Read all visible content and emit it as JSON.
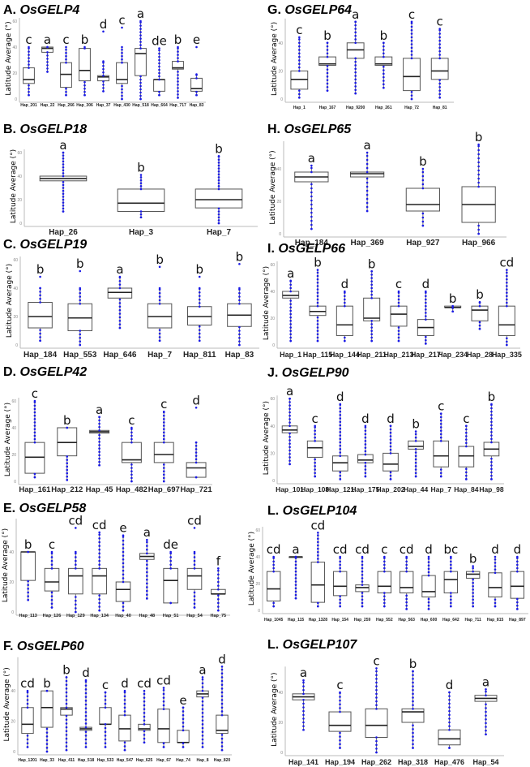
{
  "ylabel": "Latitude Average (°)",
  "colors": {
    "box": "#555555",
    "point": "#1a1ae6",
    "letter": "#111111",
    "letter_top": "#ee1c1c",
    "axis": "#bbbbbb"
  },
  "chart_data": [
    {
      "type": "box",
      "panel": "A.",
      "gene": "OsGELP4",
      "ylabel": "Latitude Average (°)",
      "yticks": [
        0,
        20,
        40,
        60
      ],
      "ylim": [
        0,
        60
      ],
      "categories": [
        "Hap_201",
        "Hap_22",
        "Hap_266",
        "Hap_306",
        "Hap_37",
        "Hap_430",
        "Hap_518",
        "Hap_664",
        "Hap_717",
        "Hap_83"
      ],
      "boxes": [
        [
          3,
          12,
          15,
          24,
          40
        ],
        [
          21,
          36,
          39,
          40,
          40
        ],
        [
          3,
          9,
          19,
          28,
          40
        ],
        [
          3,
          14,
          22,
          39,
          40
        ],
        [
          6,
          14,
          17,
          18,
          29
        ],
        [
          0,
          12,
          15,
          28,
          40
        ],
        [
          0,
          18,
          35,
          39,
          60
        ],
        [
          3,
          6,
          15,
          15,
          39
        ],
        [
          1,
          23,
          24,
          29,
          40
        ],
        [
          3,
          6,
          8,
          16,
          19
        ]
      ],
      "outliers": [
        [],
        [],
        [],
        [],
        [
          52
        ],
        [
          55
        ],
        [],
        [],
        [],
        [
          40
        ]
      ],
      "letters": [
        "c",
        "a",
        "c",
        "b",
        "d",
        "c",
        "a",
        "de",
        "b",
        "e"
      ]
    },
    {
      "type": "box",
      "panel": "B.",
      "gene": "OsGELP18",
      "ylabel": "Latitude Average (°)",
      "yticks": [
        0,
        20,
        40,
        60
      ],
      "ylim": [
        0,
        60
      ],
      "categories": [
        "Hap_26",
        "Hap_3",
        "Hap_7"
      ],
      "boxes": [
        [
          10,
          36,
          38,
          40,
          60
        ],
        [
          5,
          10,
          17,
          29,
          41
        ],
        [
          0,
          13,
          20,
          29,
          57
        ]
      ],
      "outliers": [
        [],
        [],
        []
      ],
      "letters": [
        "a",
        "b",
        "b"
      ]
    },
    {
      "type": "box",
      "panel": "C.",
      "gene": "OsGELP19",
      "ylabel": "Latitude Average (°)",
      "yticks": [
        0,
        20,
        40,
        60
      ],
      "ylim": [
        0,
        60
      ],
      "categories": [
        "Hap_184",
        "Hap_553",
        "Hap_646",
        "Hap_7",
        "Hap_811",
        "Hap_83"
      ],
      "boxes": [
        [
          3,
          12,
          20,
          30,
          40
        ],
        [
          0,
          10,
          19,
          29,
          40
        ],
        [
          12,
          33,
          37,
          40,
          48
        ],
        [
          3,
          12,
          20,
          29,
          40
        ],
        [
          3,
          14,
          20,
          27,
          40
        ],
        [
          0,
          13,
          21,
          29,
          40
        ]
      ],
      "outliers": [
        [
          48
        ],
        [
          52
        ],
        [],
        [
          55
        ],
        [
          48
        ],
        [
          57
        ]
      ],
      "letters": [
        "b",
        "b",
        "a",
        "b",
        "b",
        "b"
      ]
    },
    {
      "type": "box",
      "panel": "D.",
      "gene": "OsGELP42",
      "ylabel": "Latitude Average (°)",
      "yticks": [
        0,
        20,
        40,
        60
      ],
      "ylim": [
        0,
        60
      ],
      "categories": [
        "Hap_161",
        "Hap_212",
        "Hap_45",
        "Hap_482",
        "Hap_697",
        "Hap_721"
      ],
      "boxes": [
        [
          3,
          6,
          18,
          29,
          60
        ],
        [
          1,
          19,
          29,
          40,
          40
        ],
        [
          12,
          36,
          37,
          38,
          48
        ],
        [
          0,
          14,
          16,
          29,
          40
        ],
        [
          0,
          14,
          20,
          29,
          52
        ],
        [
          3,
          3,
          10,
          14,
          29
        ]
      ],
      "outliers": [
        [],
        [],
        [],
        [],
        [],
        [
          55
        ]
      ],
      "letters": [
        "c",
        "b",
        "a",
        "c",
        "c",
        "d"
      ]
    },
    {
      "type": "box",
      "panel": "E.",
      "gene": "OsGELP58",
      "ylabel": "Latitude Average (°)",
      "yticks": [
        0,
        20,
        40
      ],
      "ylim": [
        0,
        60
      ],
      "categories": [
        "Hap_113",
        "Hap_126",
        "Hap_129",
        "Hap_134",
        "Hap_40",
        "Hap_48",
        "Hap_51",
        "Hap_54",
        "Hap_75"
      ],
      "boxes": [
        [
          8,
          21,
          40,
          40,
          40
        ],
        [
          3,
          14,
          20,
          29,
          40
        ],
        [
          0,
          12,
          24,
          29,
          40
        ],
        [
          1,
          12,
          24,
          29,
          53
        ],
        [
          1,
          7,
          15,
          20,
          51
        ],
        [
          9,
          35,
          37,
          39,
          48
        ],
        [
          6,
          6,
          21,
          29,
          40
        ],
        [
          3,
          15,
          24,
          29,
          40
        ],
        [
          1,
          12,
          12,
          15,
          29
        ]
      ],
      "outliers": [
        [],
        [],
        [
          56
        ],
        [],
        [],
        [],
        [],
        [
          56
        ],
        []
      ],
      "letters": [
        "b",
        "c",
        "cd",
        "cd",
        "e",
        "a",
        "de",
        "cd",
        "f"
      ]
    },
    {
      "type": "box",
      "panel": "F.",
      "gene": "OsGELP60",
      "ylabel": "Latitude Average (°)",
      "yticks": [
        0,
        20,
        40
      ],
      "ylim": [
        0,
        60
      ],
      "categories": [
        "Hap_1201",
        "Hap_33",
        "Hap_411",
        "Hap_518",
        "Hap_533",
        "Hap_547",
        "Hap_625",
        "Hap_67",
        "Hap_74",
        "Hap_8",
        "Hap_820"
      ],
      "boxes": [
        [
          3,
          12,
          18,
          29,
          40
        ],
        [
          0,
          16,
          29,
          40,
          40
        ],
        [
          1,
          24,
          28,
          29,
          49
        ],
        [
          3,
          14,
          15,
          16,
          47
        ],
        [
          3,
          18,
          18,
          29,
          39
        ],
        [
          1,
          7,
          15,
          24,
          40
        ],
        [
          6,
          14,
          15,
          18,
          40
        ],
        [
          3,
          6,
          15,
          28,
          42
        ],
        [
          3,
          6,
          6,
          14,
          29
        ],
        [
          3,
          36,
          38,
          40,
          49
        ],
        [
          1,
          12,
          14,
          24,
          56
        ]
      ],
      "outliers": [
        [],
        [],
        [],
        [],
        [],
        [],
        [],
        [],
        [],
        [],
        []
      ],
      "letters": [
        "cd",
        "b",
        "b",
        "d",
        "c",
        "d",
        "cd",
        "cd",
        "e",
        "a",
        "d"
      ]
    },
    {
      "type": "box",
      "panel": "G.",
      "gene": "OsGELP64",
      "ylabel": "Latitude Average (°)",
      "yticks": [
        0,
        20,
        40
      ],
      "ylim": [
        0,
        55
      ],
      "categories": [
        "Hap_1",
        "Hap_167",
        "Hap_9200",
        "Hap_261",
        "Hap_72",
        "Hap_81"
      ],
      "boxes": [
        [
          1,
          7,
          14,
          20,
          44
        ],
        [
          6,
          24,
          25,
          30,
          40
        ],
        [
          4,
          29,
          35,
          40,
          55
        ],
        [
          8,
          24,
          25,
          30,
          40
        ],
        [
          0,
          6,
          16,
          29,
          55
        ],
        [
          1,
          14,
          20,
          29,
          50
        ]
      ],
      "outliers": [
        [],
        [],
        [],
        [],
        [],
        []
      ],
      "letters": [
        "c",
        "b",
        "a",
        "b",
        "c",
        "c"
      ]
    },
    {
      "type": "box",
      "panel": "H.",
      "gene": "OsGELP65",
      "ylabel": "Latitude Average (°)",
      "yticks": [
        0,
        20,
        40
      ],
      "ylim": [
        0,
        55
      ],
      "categories": [
        "Hap_184",
        "Hap_369",
        "Hap_927",
        "Hap_966"
      ],
      "boxes": [
        [
          3,
          32,
          35,
          38,
          42
        ],
        [
          14,
          35,
          37,
          38,
          50
        ],
        [
          5,
          14,
          18,
          28,
          40
        ],
        [
          0,
          7,
          18,
          29,
          55
        ]
      ],
      "outliers": [
        [],
        [],
        [],
        []
      ],
      "letters": [
        "a",
        "a",
        "b",
        "b"
      ]
    },
    {
      "type": "box",
      "panel": "I.",
      "gene": "OsGELP66",
      "ylabel": "Latitude Average (°)",
      "yticks": [
        0,
        20,
        40,
        60
      ],
      "ylim": [
        0,
        60
      ],
      "categories": [
        "Hap_1",
        "Hap_115",
        "Hap_144",
        "Hap_211",
        "Hap_213",
        "Hap_217",
        "Hap_234",
        "Hap_28",
        "Hap_335"
      ],
      "boxes": [
        [
          3,
          35,
          37,
          40,
          48
        ],
        [
          3,
          22,
          25,
          29,
          56
        ],
        [
          3,
          7,
          15,
          29,
          40
        ],
        [
          3,
          18,
          20,
          35,
          55
        ],
        [
          3,
          14,
          23,
          29,
          40
        ],
        [
          1,
          7,
          13,
          19,
          40
        ],
        [
          25,
          28,
          28,
          29,
          29
        ],
        [
          12,
          18,
          26,
          29,
          32
        ],
        [
          0,
          7,
          15,
          29,
          56
        ]
      ],
      "outliers": [
        [],
        [],
        [],
        [],
        [],
        [],
        [],
        [],
        []
      ],
      "letters": [
        "a",
        "b",
        "d",
        "b",
        "c",
        "d",
        "b",
        "b",
        "cd"
      ]
    },
    {
      "type": "box",
      "panel": "J.",
      "gene": "OsGELP90",
      "ylabel": "Latitude Average (°)",
      "yticks": [
        0,
        20,
        40,
        60
      ],
      "ylim": [
        0,
        60
      ],
      "categories": [
        "Hap_101",
        "Hap_108",
        "Hap_121",
        "Hap_175",
        "Hap_202",
        "Hap_44",
        "Hap_7",
        "Hap_84",
        "Hap_98"
      ],
      "boxes": [
        [
          12,
          35,
          37,
          40,
          60
        ],
        [
          3,
          17,
          24,
          29,
          40
        ],
        [
          1,
          7,
          13,
          18,
          56
        ],
        [
          3,
          13,
          15,
          19,
          40
        ],
        [
          1,
          7,
          12,
          20,
          40
        ],
        [
          3,
          23,
          25,
          29,
          36
        ],
        [
          3,
          10,
          18,
          29,
          49
        ],
        [
          1,
          10,
          18,
          25,
          40
        ],
        [
          1,
          18,
          23,
          28,
          56
        ]
      ],
      "outliers": [
        [],
        [],
        [],
        [],
        [],
        [],
        [],
        [],
        []
      ],
      "letters": [
        "a",
        "c",
        "d",
        "d",
        "d",
        "b",
        "c",
        "c",
        "b"
      ]
    },
    {
      "type": "box",
      "panel": "L.",
      "gene": "OsGELP104",
      "ylabel": "Latitude Average (°)",
      "yticks": [
        0,
        20,
        40,
        60
      ],
      "ylim": [
        0,
        60
      ],
      "categories": [
        "Hap_1045",
        "Hap_115",
        "Hap_1328",
        "Hap_154",
        "Hap_259",
        "Hap_552",
        "Hap_563",
        "Hap_600",
        "Hap_642",
        "Hap_711",
        "Hap_815",
        "Hap_897"
      ],
      "boxes": [
        [
          3,
          7,
          16,
          29,
          40
        ],
        [
          9,
          40,
          40,
          40,
          40
        ],
        [
          3,
          6,
          19,
          36,
          58
        ],
        [
          3,
          11,
          18,
          29,
          40
        ],
        [
          3,
          14,
          17,
          19,
          40
        ],
        [
          3,
          13,
          18,
          29,
          40
        ],
        [
          1,
          13,
          17,
          29,
          40
        ],
        [
          1,
          10,
          14,
          26,
          40
        ],
        [
          3,
          13,
          23,
          29,
          40
        ],
        [
          3,
          24,
          27,
          29,
          33
        ],
        [
          3,
          10,
          17,
          28,
          40
        ],
        [
          1,
          9,
          18,
          29,
          40
        ]
      ],
      "outliers": [
        [],
        [],
        [],
        [],
        [],
        [],
        [],
        [],
        [],
        [],
        [],
        []
      ],
      "letters": [
        "cd",
        "a",
        "cd",
        "cd",
        "cd",
        "c",
        "cd",
        "d",
        "bc",
        "b",
        "d",
        "d"
      ]
    },
    {
      "type": "box",
      "panel": "L.",
      "gene": "OsGELP107",
      "ylabel": "Latitude Average (°)",
      "yticks": [
        0,
        20,
        40
      ],
      "ylim": [
        0,
        55
      ],
      "categories": [
        "Hap_141",
        "Hap_194",
        "Hap_262",
        "Hap_318",
        "Hap_476",
        "Hap_54"
      ],
      "boxes": [
        [
          15,
          35,
          37,
          39,
          48
        ],
        [
          3,
          14,
          18,
          27,
          40
        ],
        [
          0,
          10,
          18,
          29,
          56
        ],
        [
          3,
          20,
          27,
          29,
          54
        ],
        [
          3,
          5,
          9,
          15,
          40
        ],
        [
          12,
          34,
          36,
          38,
          42
        ]
      ],
      "outliers": [
        [],
        [],
        [],
        [],
        [],
        []
      ],
      "letters": [
        "a",
        "c",
        "c",
        "b",
        "d",
        "a"
      ]
    }
  ]
}
